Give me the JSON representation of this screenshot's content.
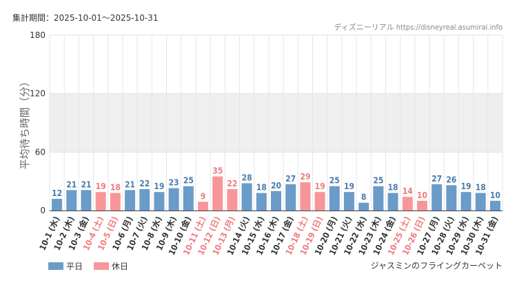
{
  "header": {
    "period": "集計期間：2025-10-01～2025-10-31",
    "site": "ディズニーリアル https://disneyreal.asumirai.info"
  },
  "footer": {
    "attraction": "ジャスミンのフライングカーペット"
  },
  "colors": {
    "weekday": "#6b9bc8",
    "holiday": "#f7969a",
    "weekday_label": "#4a7cae",
    "holiday_label": "#ee7a7f",
    "band": "#efefef"
  },
  "chart_data": {
    "type": "bar",
    "ylabel": "平均待ち時間（分）",
    "ylim": [
      0,
      180
    ],
    "yticks": [
      0,
      60,
      120,
      180
    ],
    "shaded_band": [
      60,
      120
    ],
    "legend": [
      {
        "name": "平日",
        "type": "weekday"
      },
      {
        "name": "休日",
        "type": "holiday"
      }
    ],
    "legend_position": "bottom-left",
    "categories": [
      "10-1 (水)",
      "10-2 (木)",
      "10-3 (金)",
      "10-4 (土)",
      "10-5 (日)",
      "10-6 (月)",
      "10-7 (火)",
      "10-8 (水)",
      "10-9 (木)",
      "10-10 (金)",
      "10-11 (土)",
      "10-12 (日)",
      "10-13 (月)",
      "10-14 (火)",
      "10-15 (水)",
      "10-16 (木)",
      "10-17 (金)",
      "10-18 (土)",
      "10-19 (日)",
      "10-20 (月)",
      "10-21 (火)",
      "10-22 (水)",
      "10-23 (木)",
      "10-24 (金)",
      "10-25 (土)",
      "10-26 (日)",
      "10-27 (月)",
      "10-28 (火)",
      "10-29 (水)",
      "10-30 (木)",
      "10-31 (金)"
    ],
    "values": [
      12,
      21,
      21,
      19,
      18,
      21,
      22,
      19,
      23,
      25,
      9,
      35,
      22,
      28,
      18,
      20,
      27,
      29,
      19,
      25,
      19,
      8,
      25,
      18,
      14,
      10,
      27,
      26,
      19,
      18,
      10
    ],
    "day_types": [
      "weekday",
      "weekday",
      "weekday",
      "holiday",
      "holiday",
      "weekday",
      "weekday",
      "weekday",
      "weekday",
      "weekday",
      "holiday",
      "holiday",
      "holiday",
      "weekday",
      "weekday",
      "weekday",
      "weekday",
      "holiday",
      "holiday",
      "weekday",
      "weekday",
      "weekday",
      "weekday",
      "weekday",
      "holiday",
      "holiday",
      "weekday",
      "weekday",
      "weekday",
      "weekday",
      "weekday"
    ]
  }
}
